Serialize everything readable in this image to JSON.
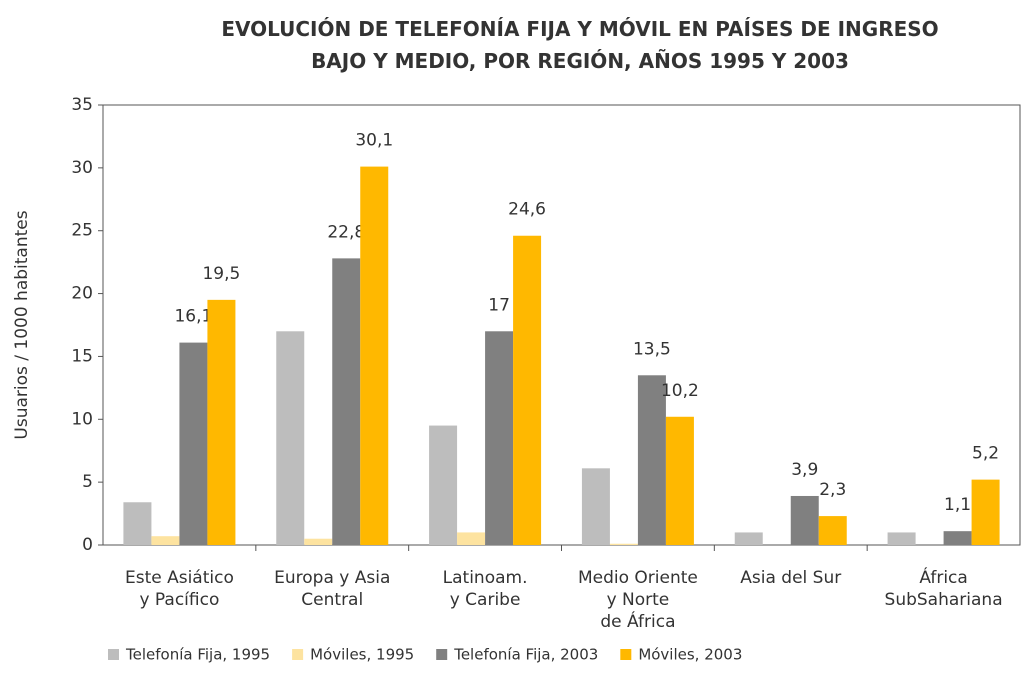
{
  "chart_data": {
    "type": "bar",
    "title": "EVOLUCIÓN DE TELEFONÍA FIJA Y MÓVIL EN PAÍSES DE INGRESO\nBAJO Y MEDIO, POR REGIÓN, AÑOS 1995 Y 2003",
    "y_label": "Usuarios / 1000 habitantes",
    "categories": [
      "Este Asiático\ny Pacífico",
      "Europa y Asia\nCentral",
      "Latinoam.\ny Caribe",
      "Medio Oriente\ny Norte\nde  África",
      "Asia del Sur",
      "África\nSubSahariana"
    ],
    "series": [
      {
        "name": "Telefonía Fija, 1995",
        "color": "#bdbdbd",
        "values": [
          3.4,
          17,
          9.5,
          6.1,
          1.0,
          1.0
        ]
      },
      {
        "name": "Móviles, 1995",
        "color": "#fde3a0",
        "values": [
          0.7,
          0.5,
          1.0,
          0.1,
          0,
          0
        ]
      },
      {
        "name": "Telefonía Fija, 2003",
        "color": "#808080",
        "values": [
          16.1,
          22.8,
          17,
          13.5,
          3.9,
          1.1
        ],
        "value_labels": [
          "16,1",
          "22,8",
          "17",
          "13,5",
          "3,9",
          "1,1"
        ]
      },
      {
        "name": "Móviles, 2003",
        "color": "#ffb800",
        "values": [
          19.5,
          30.1,
          24.6,
          10.2,
          2.3,
          5.2
        ],
        "value_labels": [
          "19,5",
          "30,1",
          "24,6",
          "10,2",
          "2,3",
          "5,2"
        ]
      }
    ],
    "ylim": [
      0,
      35
    ],
    "yticks": [
      0,
      5,
      10,
      15,
      20,
      25,
      30,
      35
    ]
  }
}
